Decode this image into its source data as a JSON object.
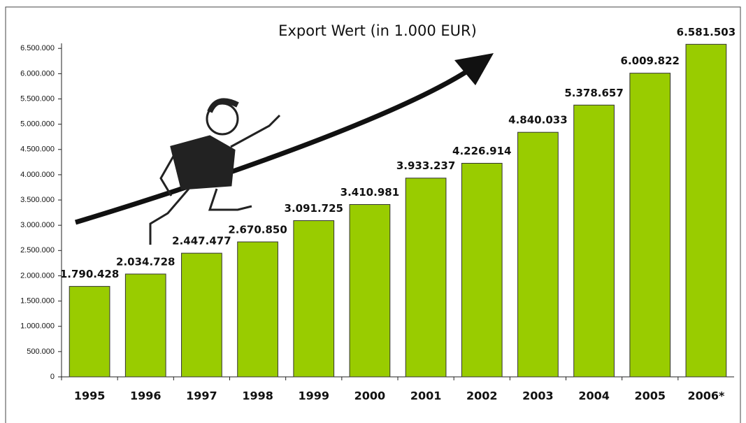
{
  "chart_data": {
    "type": "bar",
    "title": "Export Wert (in 1.000 EUR)",
    "categories": [
      "1995",
      "1996",
      "1997",
      "1998",
      "1999",
      "2000",
      "2001",
      "2002",
      "2003",
      "2004",
      "2005",
      "2006*"
    ],
    "values": [
      1790428,
      2034728,
      2447477,
      2670850,
      3091725,
      3410981,
      3933237,
      4226914,
      4840033,
      5378657,
      6009822,
      6581503
    ],
    "value_labels": [
      "1.790.428",
      "2.034.728",
      "2.447.477",
      "2.670.850",
      "3.091.725",
      "3.410.981",
      "3.933.237",
      "4.226.914",
      "4.840.033",
      "5.378.657",
      "6.009.822",
      "6.581.503"
    ],
    "color": "#99cc00",
    "ylim": [
      0,
      6600000
    ],
    "yticks": [
      0,
      {
        "value": 500000,
        "label": "500.000"
      },
      {
        "value": 1000000,
        "label": "1.000.000"
      },
      {
        "value": 1500000,
        "label": "1.500.000"
      },
      {
        "value": 2000000,
        "label": "2.000.000"
      },
      {
        "value": 2500000,
        "label": "2.500.000"
      },
      {
        "value": 3000000,
        "label": "3.000.000"
      },
      {
        "value": 3500000,
        "label": "3.500.000"
      },
      {
        "value": 4000000,
        "label": "4.000.000"
      },
      {
        "value": 4500000,
        "label": "4.500.000"
      },
      {
        "value": 5000000,
        "label": "5.000.000"
      },
      {
        "value": 5500000,
        "label": "5.500.000"
      },
      {
        "value": 6000000,
        "label": "6.000.000"
      },
      {
        "value": 6500000,
        "label": "6.500.000"
      }
    ],
    "grid": false
  }
}
